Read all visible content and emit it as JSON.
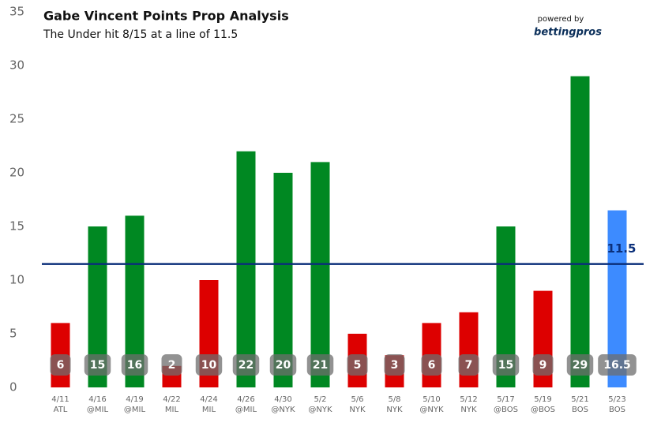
{
  "chart_data": {
    "type": "bar",
    "title": "Gabe Vincent Points Prop Analysis",
    "subtitle": "The Under hit 8/15 at a line of 11.5",
    "powered_by": "powered by",
    "brand": "bettingpros",
    "categories": [
      "4/11",
      "4/16",
      "4/19",
      "4/22",
      "4/24",
      "4/26",
      "4/30",
      "5/2",
      "5/6",
      "5/8",
      "5/10",
      "5/12",
      "5/17",
      "5/19",
      "5/21",
      "5/23"
    ],
    "opponents": [
      "ATL",
      "@MIL",
      "@MIL",
      "MIL",
      "MIL",
      "@MIL",
      "@NYK",
      "@NYK",
      "NYK",
      "NYK",
      "@NYK",
      "NYK",
      "@BOS",
      "@BOS",
      "BOS",
      "BOS"
    ],
    "values": [
      6,
      15,
      16,
      2,
      10,
      22,
      20,
      21,
      5,
      3,
      6,
      7,
      15,
      9,
      29,
      16.5
    ],
    "colors": [
      "#dd0000",
      "#008822",
      "#008822",
      "#dd0000",
      "#dd0000",
      "#008822",
      "#008822",
      "#008822",
      "#dd0000",
      "#dd0000",
      "#dd0000",
      "#dd0000",
      "#008822",
      "#dd0000",
      "#008822",
      "#3d8bff"
    ],
    "line_value": 11.5,
    "line_color": "#0b2f7a",
    "ylim": [
      0,
      35
    ],
    "yticks": [
      0,
      5,
      10,
      15,
      20,
      25,
      30,
      35
    ],
    "grid": false
  }
}
